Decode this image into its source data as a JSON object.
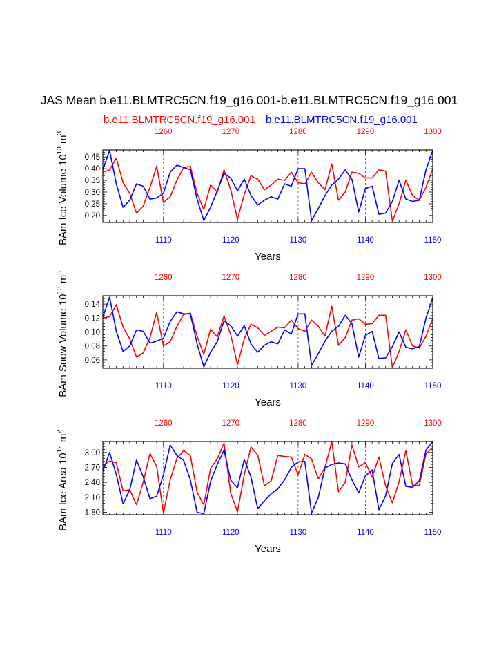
{
  "title": "JAS Mean b.e11.BLMTRC5CN.f19_g16.001-b.e11.BLMTRC5CN.f19_g16.001",
  "legend": {
    "red_label": "b.e11.BLMTRC5CN.f19_g16.001",
    "blue_label": "b.e11.BLMTRC5CN.f19_g16.001"
  },
  "colors": {
    "red": "#ff0000",
    "blue": "#0000ff",
    "axis": "#000000",
    "grid": "#000000"
  },
  "chart_data": [
    {
      "type": "line",
      "ylabel": "BAm Ice Volume 10^13 m^3",
      "ylabel_parts": {
        "base": "BAm Ice Volume 10",
        "exp1": "13",
        "mid": " m",
        "exp2": "3"
      },
      "xlabel": "Years",
      "xlim_bottom": [
        1101,
        1150
      ],
      "xlim_top": [
        1251,
        1300
      ],
      "ylim": [
        0.17,
        0.48
      ],
      "yticks": [
        0.2,
        0.25,
        0.3,
        0.35,
        0.4,
        0.45
      ],
      "ytick_labels": [
        "0.20",
        "0.25",
        "0.30",
        "0.35",
        "0.40",
        "0.45"
      ],
      "xticks_bottom": [
        1110,
        1120,
        1130,
        1140,
        1150
      ],
      "xticks_bottom_labels": [
        "1110",
        "1120",
        "1130",
        "1140",
        "1150"
      ],
      "xticks_top": [
        1260,
        1270,
        1280,
        1290,
        1300
      ],
      "xticks_top_labels": [
        "1260",
        "1270",
        "1280",
        "1290",
        "1300"
      ],
      "series": [
        {
          "name": "b.e11.BLMTRC5CN.f19_g16.001",
          "color": "#ff0000",
          "values": [
            0.385,
            0.395,
            0.445,
            0.34,
            0.295,
            0.21,
            0.24,
            0.32,
            0.41,
            0.255,
            0.28,
            0.35,
            0.405,
            0.41,
            0.295,
            0.225,
            0.33,
            0.3,
            0.395,
            0.31,
            0.183,
            0.29,
            0.37,
            0.355,
            0.31,
            0.33,
            0.355,
            0.35,
            0.385,
            0.34,
            0.335,
            0.385,
            0.34,
            0.31,
            0.42,
            0.265,
            0.3,
            0.385,
            0.38,
            0.36,
            0.36,
            0.395,
            0.39,
            0.175,
            0.25,
            0.35,
            0.285,
            0.265,
            0.32,
            0.4
          ]
        },
        {
          "name": "b.e11.BLMTRC5CN.f19_g16.001",
          "color": "#0000ff",
          "values": [
            0.395,
            0.478,
            0.335,
            0.235,
            0.265,
            0.335,
            0.325,
            0.27,
            0.275,
            0.295,
            0.385,
            0.415,
            0.405,
            0.395,
            0.27,
            0.178,
            0.235,
            0.305,
            0.38,
            0.36,
            0.305,
            0.355,
            0.285,
            0.245,
            0.265,
            0.28,
            0.27,
            0.335,
            0.325,
            0.4,
            0.4,
            0.178,
            0.23,
            0.285,
            0.33,
            0.355,
            0.395,
            0.355,
            0.215,
            0.315,
            0.325,
            0.205,
            0.21,
            0.26,
            0.35,
            0.27,
            0.26,
            0.265,
            0.395,
            0.478
          ]
        }
      ]
    },
    {
      "type": "line",
      "ylabel": "BAm Snow Volume 10^13 m^3",
      "ylabel_parts": {
        "base": "BAm Snow Volume 10",
        "exp1": "13",
        "mid": " m",
        "exp2": "3"
      },
      "xlabel": "Years",
      "xlim_bottom": [
        1101,
        1150
      ],
      "xlim_top": [
        1251,
        1300
      ],
      "ylim": [
        0.048,
        0.152
      ],
      "yticks": [
        0.06,
        0.08,
        0.1,
        0.12,
        0.14
      ],
      "ytick_labels": [
        "0.06",
        "0.08",
        "0.10",
        "0.12",
        "0.14"
      ],
      "xticks_bottom": [
        1110,
        1120,
        1130,
        1140,
        1150
      ],
      "xticks_bottom_labels": [
        "1110",
        "1120",
        "1130",
        "1140",
        "1150"
      ],
      "xticks_top": [
        1260,
        1270,
        1280,
        1290,
        1300
      ],
      "xticks_top_labels": [
        "1260",
        "1270",
        "1280",
        "1290",
        "1300"
      ],
      "series": [
        {
          "name": "b.e11.BLMTRC5CN.f19_g16.001",
          "color": "#ff0000",
          "values": [
            0.12,
            0.122,
            0.139,
            0.107,
            0.09,
            0.064,
            0.07,
            0.092,
            0.128,
            0.08,
            0.086,
            0.108,
            0.125,
            0.127,
            0.094,
            0.068,
            0.104,
            0.093,
            0.123,
            0.096,
            0.053,
            0.09,
            0.111,
            0.106,
            0.095,
            0.101,
            0.107,
            0.106,
            0.117,
            0.105,
            0.101,
            0.117,
            0.108,
            0.094,
            0.137,
            0.081,
            0.092,
            0.117,
            0.119,
            0.111,
            0.112,
            0.124,
            0.124,
            0.049,
            0.072,
            0.103,
            0.08,
            0.077,
            0.094,
            0.119
          ]
        },
        {
          "name": "b.e11.BLMTRC5CN.f19_g16.001",
          "color": "#0000ff",
          "values": [
            0.121,
            0.15,
            0.101,
            0.072,
            0.08,
            0.103,
            0.101,
            0.084,
            0.087,
            0.091,
            0.115,
            0.129,
            0.126,
            0.126,
            0.083,
            0.05,
            0.071,
            0.086,
            0.116,
            0.109,
            0.094,
            0.109,
            0.083,
            0.071,
            0.081,
            0.086,
            0.083,
            0.103,
            0.097,
            0.126,
            0.126,
            0.052,
            0.069,
            0.087,
            0.101,
            0.108,
            0.124,
            0.112,
            0.064,
            0.095,
            0.101,
            0.062,
            0.063,
            0.079,
            0.1,
            0.078,
            0.076,
            0.079,
            0.12,
            0.149
          ]
        }
      ]
    },
    {
      "type": "line",
      "ylabel": "BAm Ice Area 10^12 m^2",
      "ylabel_parts": {
        "base": "BAm Ice Area 10",
        "exp1": "12",
        "mid": " m",
        "exp2": "2"
      },
      "xlabel": "Years",
      "xlim_bottom": [
        1101,
        1150
      ],
      "xlim_top": [
        1251,
        1300
      ],
      "ylim": [
        1.75,
        3.22
      ],
      "yticks": [
        1.8,
        2.1,
        2.4,
        2.7,
        3.0
      ],
      "ytick_labels": [
        "1.80",
        "2.10",
        "2.40",
        "2.70",
        "3.00"
      ],
      "xticks_bottom": [
        1110,
        1120,
        1130,
        1140,
        1150
      ],
      "xticks_bottom_labels": [
        "1110",
        "1120",
        "1130",
        "1140",
        "1150"
      ],
      "xticks_top": [
        1260,
        1270,
        1280,
        1290,
        1300
      ],
      "xticks_top_labels": [
        "1260",
        "1270",
        "1280",
        "1290",
        "1300"
      ],
      "series": [
        {
          "name": "b.e11.BLMTRC5CN.f19_g16.001",
          "color": "#ff0000",
          "values": [
            2.73,
            2.83,
            2.79,
            2.23,
            2.25,
            1.95,
            2.4,
            2.98,
            2.72,
            1.78,
            2.45,
            2.88,
            3.04,
            2.94,
            2.2,
            1.95,
            2.68,
            2.87,
            3.19,
            2.18,
            1.81,
            2.55,
            3.11,
            2.95,
            2.33,
            2.43,
            2.94,
            2.92,
            2.91,
            2.55,
            2.96,
            2.87,
            2.47,
            2.7,
            3.22,
            2.21,
            2.4,
            3.15,
            2.71,
            2.8,
            2.5,
            2.91,
            2.33,
            1.99,
            2.41,
            3.04,
            2.34,
            2.34,
            2.97,
            3.1
          ]
        },
        {
          "name": "b.e11.BLMTRC5CN.f19_g16.001",
          "color": "#0000ff",
          "values": [
            2.62,
            3.0,
            2.56,
            1.97,
            2.25,
            2.85,
            2.51,
            2.07,
            2.12,
            2.55,
            3.15,
            2.94,
            2.84,
            2.45,
            1.8,
            1.77,
            2.42,
            2.76,
            3.05,
            2.44,
            2.29,
            2.86,
            2.51,
            1.87,
            2.03,
            2.17,
            2.27,
            2.45,
            2.7,
            2.81,
            2.82,
            1.78,
            2.1,
            2.69,
            2.76,
            2.79,
            2.77,
            2.45,
            2.19,
            2.53,
            2.65,
            1.85,
            2.13,
            2.78,
            2.96,
            2.32,
            2.3,
            2.43,
            3.05,
            3.22
          ]
        }
      ]
    }
  ]
}
